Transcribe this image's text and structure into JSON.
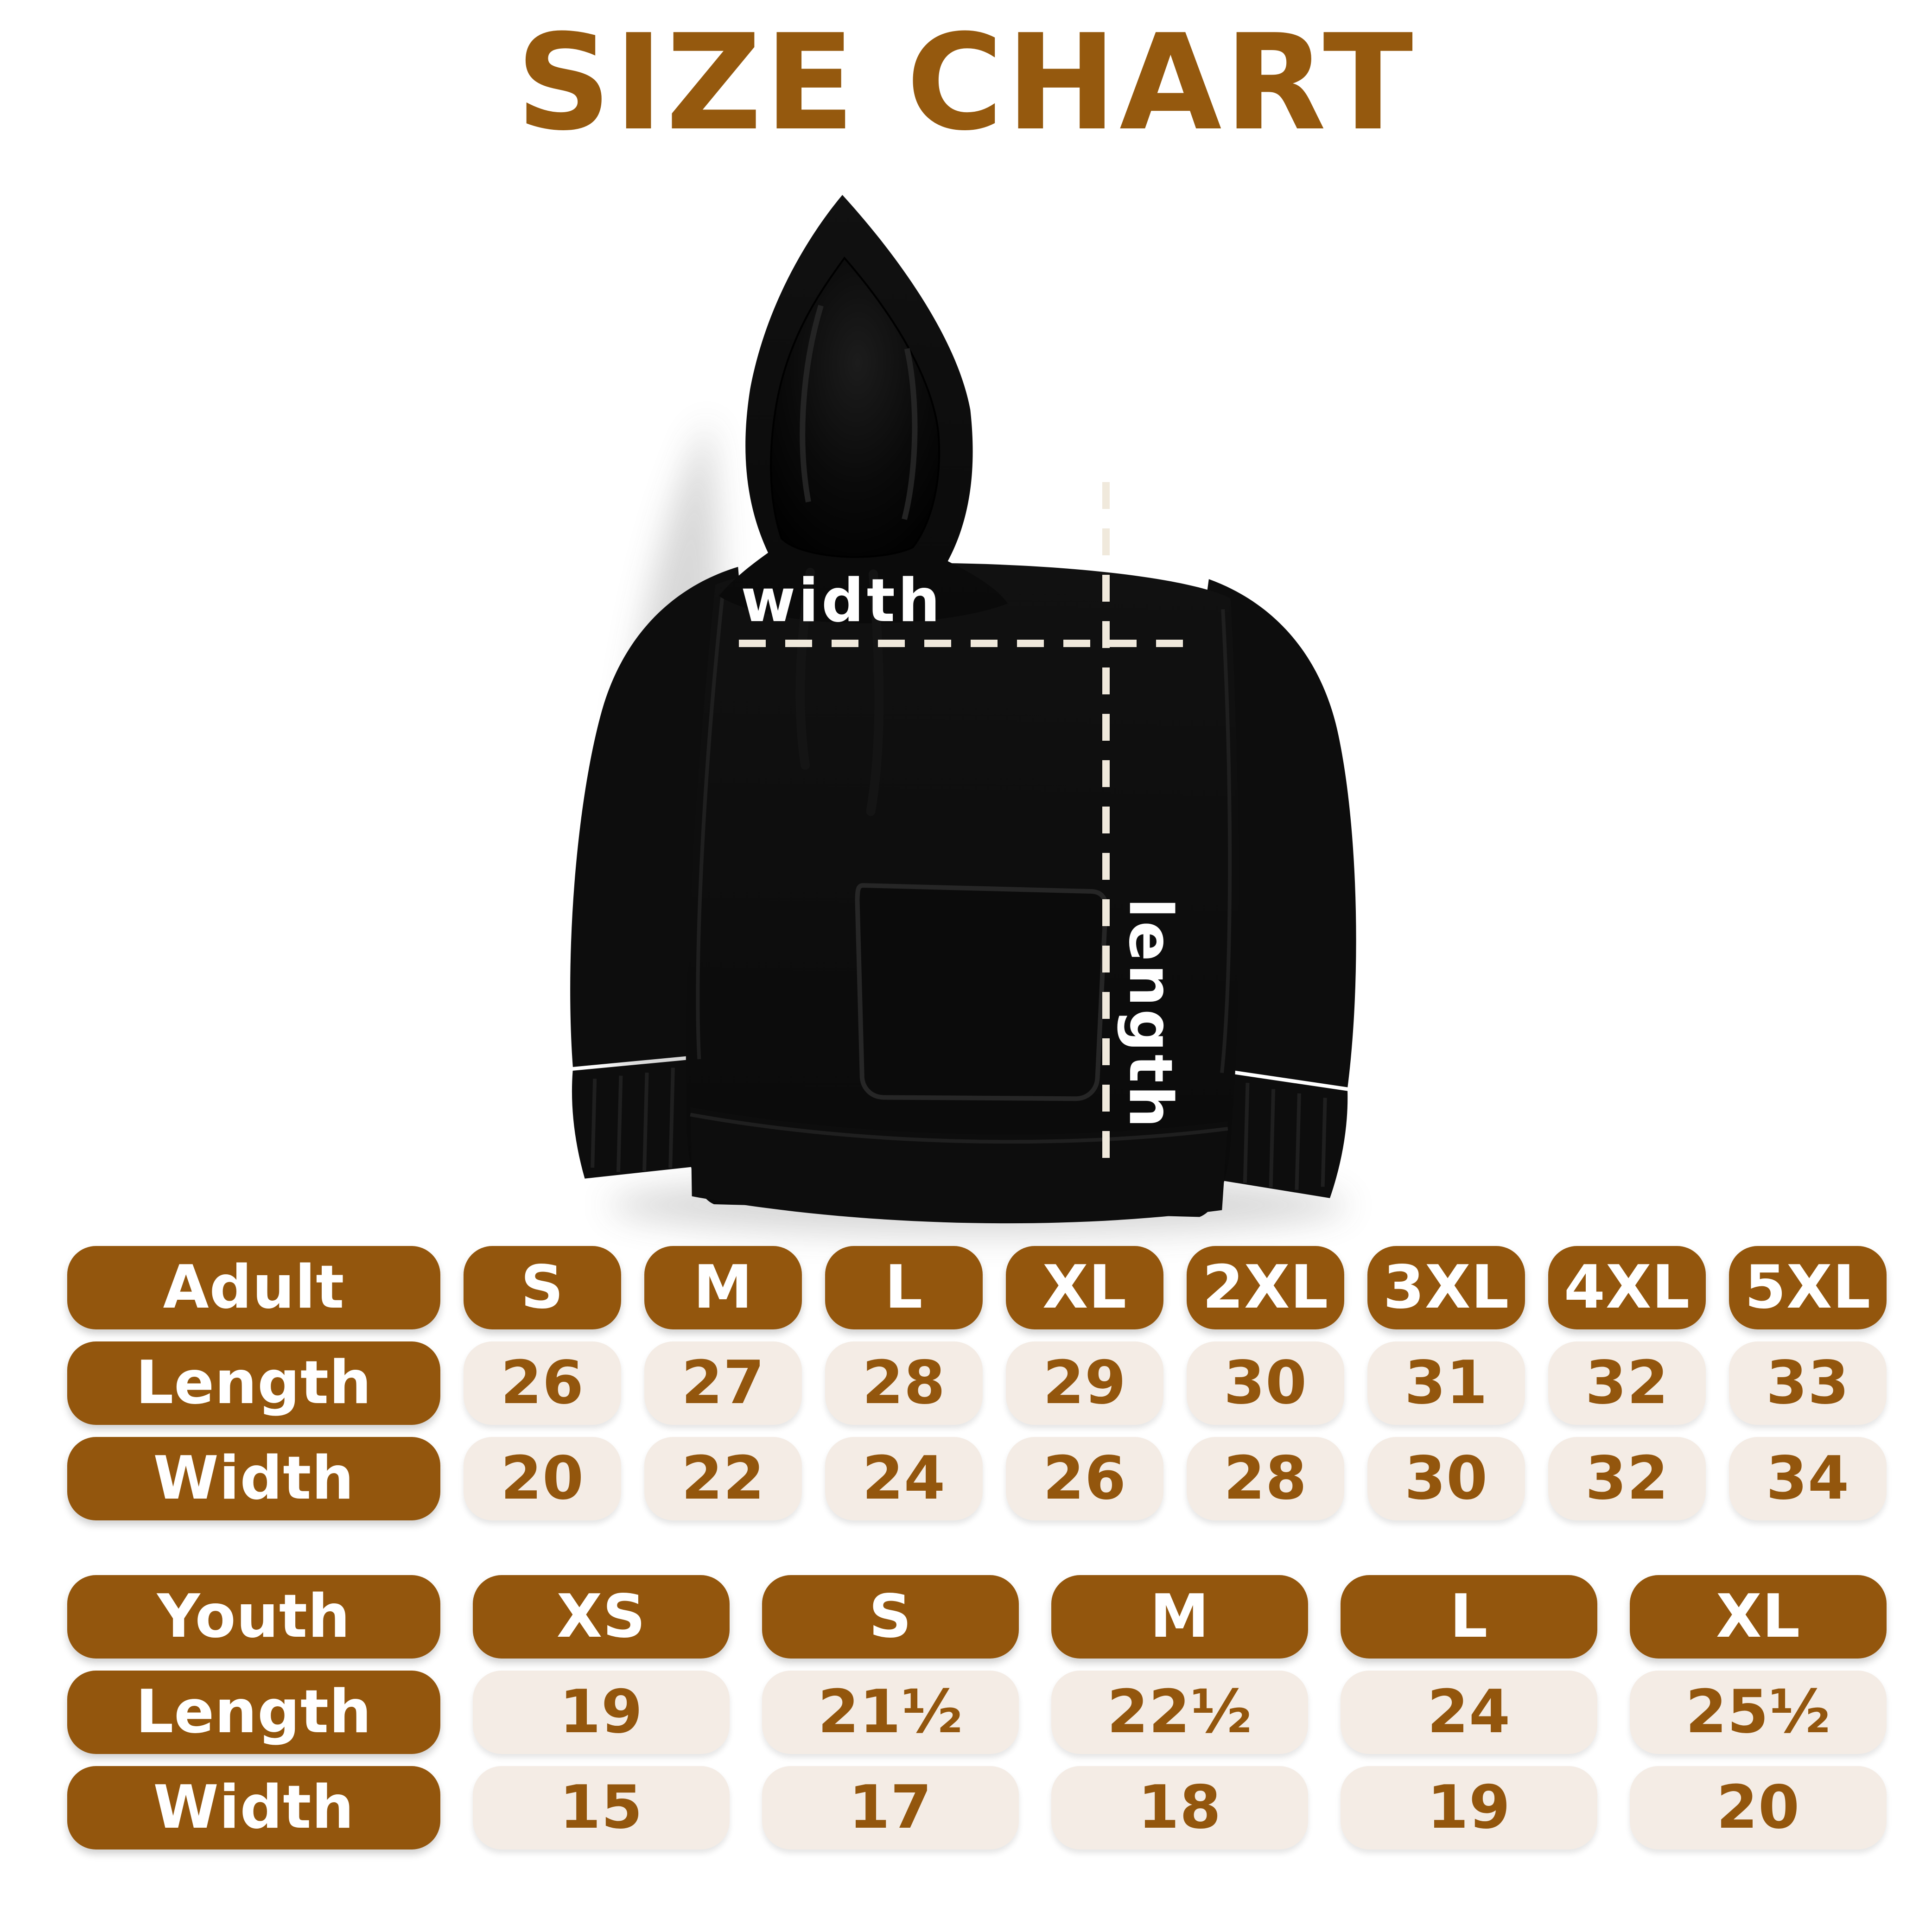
{
  "page": {
    "title": "SIZE CHART"
  },
  "colors": {
    "title_brown": "#95590e",
    "pill_brown": "#93560d",
    "cell_beige": "#f4ece5",
    "dash_cream": "#f0e9dc",
    "hoodie_black": "#0d0d0d",
    "label_white": "#ffffff"
  },
  "hoodie": {
    "width_label": "width",
    "length_label": "length"
  },
  "adult_table": {
    "header": {
      "label": "Adult",
      "sizes": [
        "S",
        "M",
        "L",
        "XL",
        "2XL",
        "3XL",
        "4XL",
        "5XL"
      ]
    },
    "rows": [
      {
        "label": "Length",
        "values": [
          "26",
          "27",
          "28",
          "29",
          "30",
          "31",
          "32",
          "33"
        ]
      },
      {
        "label": "Width",
        "values": [
          "20",
          "22",
          "24",
          "26",
          "28",
          "30",
          "32",
          "34"
        ]
      }
    ]
  },
  "youth_table": {
    "header": {
      "label": "Youth",
      "sizes": [
        "XS",
        "S",
        "M",
        "L",
        "XL"
      ]
    },
    "rows": [
      {
        "label": "Length",
        "values": [
          "19",
          "21½",
          "22½",
          "24",
          "25½"
        ]
      },
      {
        "label": "Width",
        "values": [
          "15",
          "17",
          "18",
          "19",
          "20"
        ]
      }
    ]
  },
  "chart_data": [
    {
      "type": "table",
      "title": "Adult hoodie sizes (inches)",
      "columns": [
        "Adult",
        "S",
        "M",
        "L",
        "XL",
        "2XL",
        "3XL",
        "4XL",
        "5XL"
      ],
      "rows": [
        [
          "Length",
          26,
          27,
          28,
          29,
          30,
          31,
          32,
          33
        ],
        [
          "Width",
          20,
          22,
          24,
          26,
          28,
          30,
          32,
          34
        ]
      ]
    },
    {
      "type": "table",
      "title": "Youth hoodie sizes (inches)",
      "columns": [
        "Youth",
        "XS",
        "S",
        "M",
        "L",
        "XL"
      ],
      "rows": [
        [
          "Length",
          "19",
          "21½",
          "22½",
          "24",
          "25½"
        ],
        [
          "Width",
          "15",
          "17",
          "18",
          "19",
          "20"
        ]
      ]
    }
  ]
}
